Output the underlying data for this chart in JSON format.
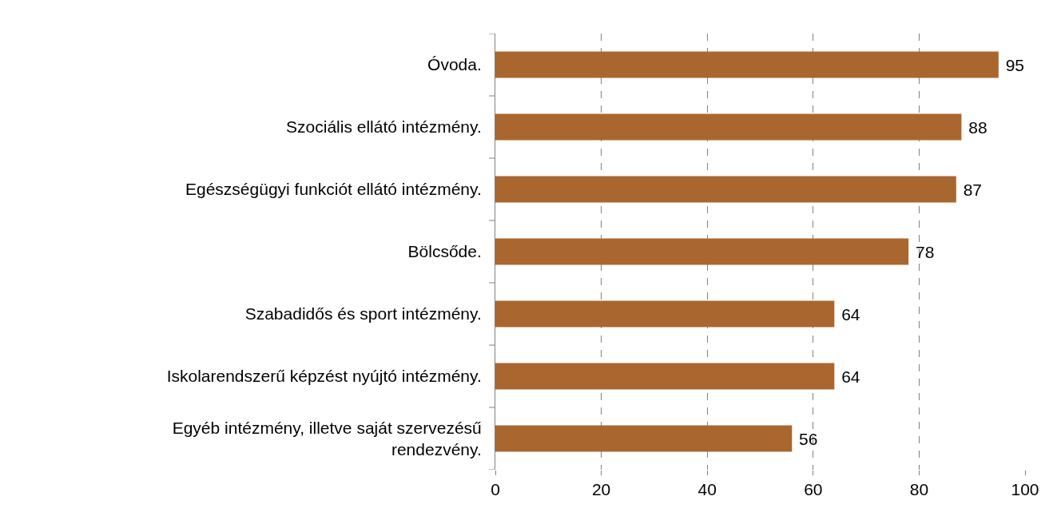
{
  "chart_data": {
    "type": "bar",
    "orientation": "horizontal",
    "categories": [
      "Óvoda.",
      "Szociális ellátó intézmény.",
      "Egészségügyi funkciót ellátó intézmény.",
      "Bölcsőde.",
      "Szabadidős és sport intézmény.",
      "Iskolarendszerű képzést nyújtó intézmény.",
      "Egyéb intézmény, illetve saját szervezésű rendezvény."
    ],
    "values": [
      95,
      88,
      87,
      78,
      64,
      64,
      56
    ],
    "color": "#a9672f",
    "xlim": [
      0,
      100
    ],
    "xticks": [
      0,
      20,
      40,
      60,
      80,
      100
    ],
    "grid": "x",
    "data_labels": true
  }
}
